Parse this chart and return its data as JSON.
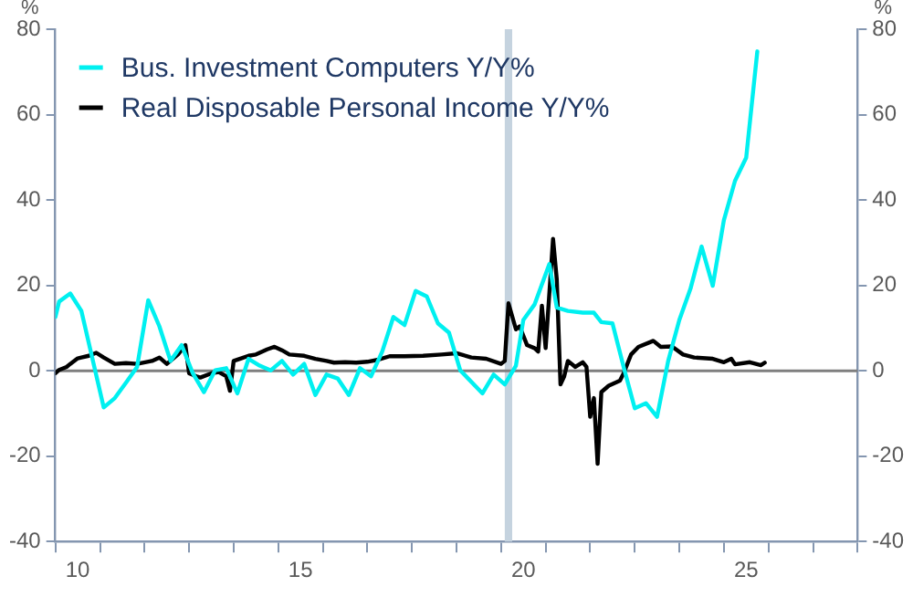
{
  "chart_data": {
    "type": "line",
    "ylabel": "%",
    "y2label": "%",
    "legend": "top left",
    "grid": false,
    "xlim": [
      "2010-01",
      "2028-01"
    ],
    "xticks": [
      {
        "value": "2010-01",
        "label": null
      },
      {
        "value": "2010-07",
        "label": "10"
      },
      {
        "value": "2011-01",
        "label": null
      },
      {
        "value": "2012-01",
        "label": null
      },
      {
        "value": "2013-01",
        "label": null
      },
      {
        "value": "2014-01",
        "label": null
      },
      {
        "value": "2015-01",
        "label": null
      },
      {
        "value": "2015-07",
        "label": "15"
      },
      {
        "value": "2016-01",
        "label": null
      },
      {
        "value": "2017-01",
        "label": null
      },
      {
        "value": "2018-01",
        "label": null
      },
      {
        "value": "2019-01",
        "label": null
      },
      {
        "value": "2020-01",
        "label": null
      },
      {
        "value": "2020-07",
        "label": "20"
      },
      {
        "value": "2021-01",
        "label": null
      },
      {
        "value": "2022-01",
        "label": null
      },
      {
        "value": "2023-01",
        "label": null
      },
      {
        "value": "2024-01",
        "label": null
      },
      {
        "value": "2025-01",
        "label": null
      },
      {
        "value": "2025-07",
        "label": "25"
      },
      {
        "value": "2026-01",
        "label": null
      },
      {
        "value": "2027-01",
        "label": null
      },
      {
        "value": "2028-01",
        "label": null
      }
    ],
    "ylim": [
      -40,
      80
    ],
    "yticks": [
      -40,
      -20,
      0,
      20,
      40,
      60,
      80
    ],
    "y2lim": [
      -40,
      80
    ],
    "y2ticks": [
      -40,
      -20,
      0,
      20,
      40,
      60,
      80
    ],
    "ref_lines": [
      {
        "axis": "y",
        "value": 0,
        "color": "#7f7f7f"
      }
    ],
    "bands": [
      {
        "axis": "x",
        "from": "2020-02",
        "to": "2020-04",
        "color": "#c5d3df"
      }
    ],
    "series": [
      {
        "name": "Bus. Investment Computers Y/Y%",
        "color": "#00f0f0",
        "x": [
          "2010-01",
          "2010-02",
          "2010-05",
          "2010-08",
          "2011-02",
          "2011-05",
          "2011-08",
          "2011-11",
          "2012-02",
          "2012-05",
          "2012-08",
          "2012-11",
          "2013-02",
          "2013-05",
          "2013-08",
          "2013-11",
          "2014-02",
          "2014-05",
          "2014-08",
          "2014-11",
          "2015-02",
          "2015-05",
          "2015-08",
          "2015-11",
          "2016-02",
          "2016-05",
          "2016-08",
          "2016-11",
          "2017-02",
          "2017-05",
          "2017-08",
          "2017-11",
          "2018-02",
          "2018-05",
          "2018-08",
          "2018-11",
          "2019-02",
          "2019-08",
          "2019-11",
          "2020-02",
          "2020-05",
          "2020-07",
          "2020-10",
          "2021-02",
          "2021-04",
          "2021-07",
          "2021-11",
          "2022-02",
          "2022-04",
          "2022-07",
          "2022-10",
          "2023-01",
          "2023-04",
          "2023-07",
          "2023-10",
          "2024-01",
          "2024-04",
          "2024-07",
          "2024-10",
          "2025-01",
          "2025-04",
          "2025-07",
          "2025-10"
        ],
        "values": [
          12.6,
          16.2,
          18.1,
          14,
          -8.6,
          -6.4,
          -2.8,
          0.9,
          16.5,
          10.4,
          2.3,
          6,
          -0.6,
          -5,
          0.1,
          0.6,
          -5.3,
          2.8,
          1.2,
          0.1,
          2.3,
          -0.9,
          1.6,
          -5.7,
          -0.9,
          -1.8,
          -5.7,
          0.6,
          -1.3,
          4.5,
          12.6,
          10.7,
          18.7,
          17.4,
          11.1,
          8.9,
          0.1,
          -5.3,
          -0.9,
          -3.2,
          1.2,
          11.9,
          15.5,
          25,
          14.8,
          14,
          13.6,
          13.6,
          11.4,
          11.1,
          0.9,
          -8.8,
          -7.6,
          -10.8,
          2.3,
          11.9,
          19.2,
          29.1,
          19.9,
          35.3,
          44.5,
          49.9,
          74.8
        ]
      },
      {
        "name": "Real Disposable Personal Income Y/Y%",
        "color": "#000000",
        "x": [
          "2010-01",
          "2010-02",
          "2010-04",
          "2010-05",
          "2010-07",
          "2010-08",
          "2010-10",
          "2010-12",
          "2011-02",
          "2011-05",
          "2011-08",
          "2011-11",
          "2012-03",
          "2012-05",
          "2012-07",
          "2012-10",
          "2012-12",
          "2013-01",
          "2013-03",
          "2013-04",
          "2013-07",
          "2013-09",
          "2013-11",
          "2013-12",
          "2014-01",
          "2014-03",
          "2014-05",
          "2014-07",
          "2014-10",
          "2014-12",
          "2015-02",
          "2015-04",
          "2015-08",
          "2015-11",
          "2016-02",
          "2016-04",
          "2016-07",
          "2016-10",
          "2017-01",
          "2017-04",
          "2017-07",
          "2017-11",
          "2018-04",
          "2018-09",
          "2019-01",
          "2019-05",
          "2019-09",
          "2020-01",
          "2020-02",
          "2020-03",
          "2020-05",
          "2020-06",
          "2020-08",
          "2020-10",
          "2020-11",
          "2020-12",
          "2021-01",
          "2021-03",
          "2021-04",
          "2021-05",
          "2021-06",
          "2021-07",
          "2021-09",
          "2021-11",
          "2021-12",
          "2022-01",
          "2022-02",
          "2022-03",
          "2022-04",
          "2022-06",
          "2022-09",
          "2022-10",
          "2022-12",
          "2023-02",
          "2023-06",
          "2023-08",
          "2023-11",
          "2024-02",
          "2024-05",
          "2024-10",
          "2025-01",
          "2025-03",
          "2025-04",
          "2025-08",
          "2025-11",
          "2025-12"
        ],
        "values": [
          -0.6,
          0.2,
          0.9,
          1.6,
          2.9,
          3.1,
          3.5,
          4.2,
          3.1,
          1.6,
          1.8,
          1.6,
          2.3,
          3.1,
          1.6,
          3.8,
          6,
          -0.6,
          -1.3,
          -1.6,
          -0.6,
          -0.3,
          -1.3,
          -4.7,
          2.3,
          2.9,
          3.5,
          3.8,
          5,
          5.6,
          4.8,
          3.8,
          3.5,
          2.8,
          2.3,
          1.9,
          2,
          1.9,
          2.1,
          2.6,
          3.4,
          3.4,
          3.5,
          3.8,
          4.1,
          3.1,
          2.8,
          1.6,
          2.3,
          15.8,
          9.7,
          10.4,
          6,
          5.3,
          4.5,
          15.2,
          5.3,
          30.9,
          21.4,
          -3.2,
          -1.3,
          2.3,
          0.9,
          2,
          0.9,
          -10.8,
          -6.4,
          -21.8,
          -5,
          -3.5,
          -2.3,
          -0.6,
          3.8,
          5.6,
          7,
          5.6,
          5.7,
          3.8,
          3.1,
          2.8,
          2,
          2.8,
          1.5,
          2,
          1.3,
          1.9
        ]
      }
    ]
  }
}
